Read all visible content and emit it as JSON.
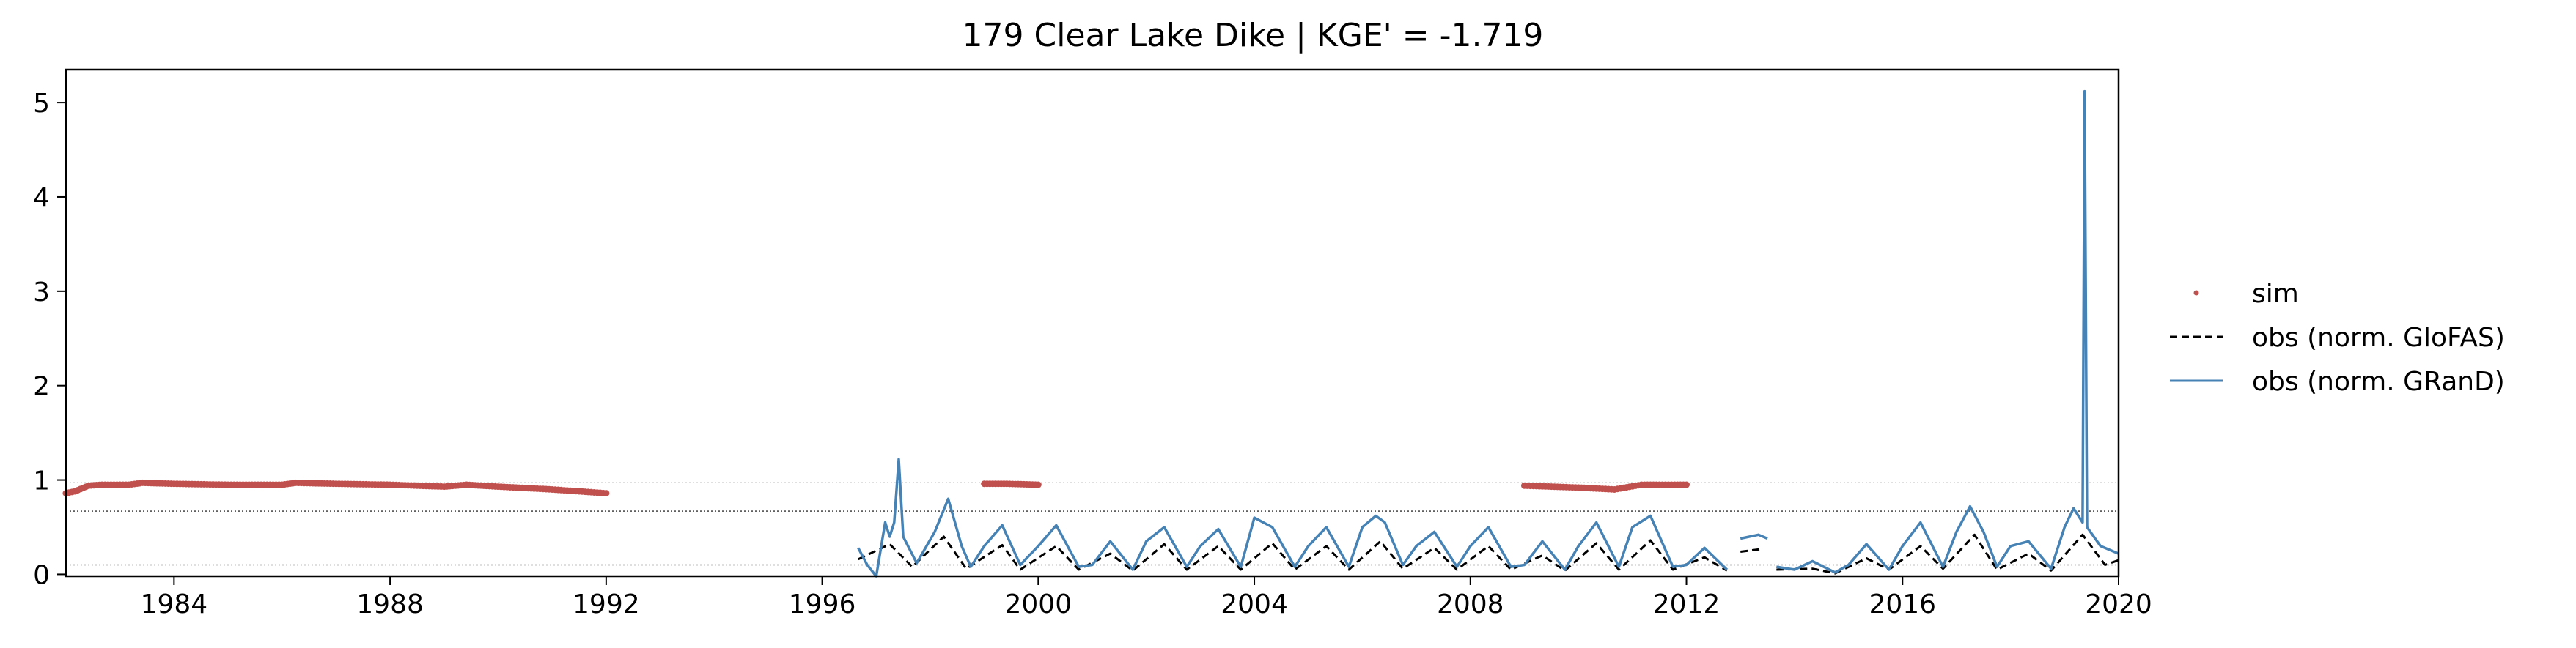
{
  "chart_data": {
    "type": "line",
    "title": "179  Clear Lake Dike | KGE' = -1.719",
    "x_axis": {
      "type": "date",
      "range": [
        "1982-01-01",
        "2020-01-01"
      ],
      "ticks": [
        "1984",
        "1988",
        "1992",
        "1996",
        "2000",
        "2004",
        "2008",
        "2012",
        "2016",
        "2020"
      ]
    },
    "y_axis": {
      "range": [
        -0.02,
        5.35
      ],
      "ticks": [
        "0",
        "1",
        "2",
        "3",
        "4",
        "5"
      ]
    },
    "grid": false,
    "legend_position": "right, outside plot",
    "reference_lines": [
      0.97,
      0.67,
      0.1
    ],
    "series": [
      {
        "name": "sim",
        "style": "points",
        "color": "#c0504d",
        "segments": [
          [
            [
              "1982-01-01",
              0.86
            ],
            [
              "1982-03-01",
              0.88
            ],
            [
              "1982-06-01",
              0.94
            ],
            [
              "1982-09-01",
              0.95
            ],
            [
              "1983-03-01",
              0.95
            ],
            [
              "1983-06-01",
              0.97
            ],
            [
              "1984-01-01",
              0.96
            ],
            [
              "1985-01-01",
              0.95
            ],
            [
              "1986-01-01",
              0.95
            ],
            [
              "1986-04-01",
              0.97
            ],
            [
              "1987-01-01",
              0.96
            ],
            [
              "1988-01-01",
              0.95
            ],
            [
              "1989-01-01",
              0.93
            ],
            [
              "1989-06-01",
              0.95
            ],
            [
              "1990-01-01",
              0.93
            ],
            [
              "1991-01-01",
              0.9
            ],
            [
              "1992-01-01",
              0.86
            ]
          ],
          [
            [
              "1999-01-01",
              0.96
            ],
            [
              "1999-06-01",
              0.96
            ],
            [
              "2000-01-01",
              0.95
            ]
          ],
          [
            [
              "2009-01-01",
              0.94
            ],
            [
              "2010-01-01",
              0.92
            ],
            [
              "2010-09-01",
              0.9
            ],
            [
              "2011-03-01",
              0.95
            ],
            [
              "2012-01-01",
              0.95
            ]
          ]
        ]
      },
      {
        "name": "obs (norm. GloFAS)",
        "style": "dashed",
        "color": "#000000",
        "segments": [
          [
            [
              "1996-09-01",
              0.16
            ],
            [
              "1997-04-01",
              0.32
            ],
            [
              "1997-09-01",
              0.08
            ],
            [
              "1998-04-01",
              0.4
            ],
            [
              "1998-09-01",
              0.06
            ],
            [
              "1999-05-01",
              0.31
            ],
            [
              "1999-09-01",
              0.05
            ],
            [
              "2000-05-01",
              0.3
            ],
            [
              "2000-10-01",
              0.05
            ],
            [
              "2001-05-01",
              0.22
            ],
            [
              "2001-10-01",
              0.04
            ],
            [
              "2002-05-01",
              0.32
            ],
            [
              "2002-10-01",
              0.05
            ],
            [
              "2003-05-01",
              0.3
            ],
            [
              "2003-10-01",
              0.05
            ],
            [
              "2004-05-01",
              0.33
            ],
            [
              "2004-10-01",
              0.05
            ],
            [
              "2005-05-01",
              0.3
            ],
            [
              "2005-10-01",
              0.05
            ],
            [
              "2006-05-01",
              0.35
            ],
            [
              "2006-10-01",
              0.06
            ],
            [
              "2007-05-01",
              0.28
            ],
            [
              "2007-10-01",
              0.05
            ],
            [
              "2008-05-01",
              0.3
            ],
            [
              "2008-10-01",
              0.05
            ],
            [
              "2009-05-01",
              0.2
            ],
            [
              "2009-10-01",
              0.04
            ],
            [
              "2010-05-01",
              0.33
            ],
            [
              "2010-10-01",
              0.05
            ],
            [
              "2011-05-01",
              0.36
            ],
            [
              "2011-10-01",
              0.05
            ],
            [
              "2012-05-01",
              0.18
            ],
            [
              "2012-10-01",
              0.04
            ]
          ],
          [
            [
              "2013-01-01",
              0.24
            ],
            [
              "2013-06-01",
              0.27
            ]
          ],
          [
            [
              "2013-09-01",
              0.05
            ],
            [
              "2014-05-01",
              0.06
            ],
            [
              "2014-10-01",
              0.01
            ],
            [
              "2015-05-01",
              0.17
            ],
            [
              "2015-10-01",
              0.05
            ],
            [
              "2016-05-01",
              0.3
            ],
            [
              "2016-10-01",
              0.06
            ],
            [
              "2017-05-01",
              0.42
            ],
            [
              "2017-10-01",
              0.05
            ],
            [
              "2018-05-01",
              0.22
            ],
            [
              "2018-10-01",
              0.04
            ],
            [
              "2019-05-01",
              0.42
            ],
            [
              "2019-10-01",
              0.1
            ],
            [
              "2020-01-01",
              0.15
            ]
          ]
        ]
      },
      {
        "name": "obs (norm. GRanD)",
        "style": "solid",
        "color": "#4682b4",
        "segments": [
          [
            [
              "1996-09-01",
              0.28
            ],
            [
              "1996-11-01",
              0.1
            ],
            [
              "1997-01-01",
              -0.02
            ],
            [
              "1997-03-01",
              0.55
            ],
            [
              "1997-04-01",
              0.4
            ],
            [
              "1997-05-01",
              0.55
            ],
            [
              "1997-06-01",
              1.22
            ],
            [
              "1997-07-01",
              0.4
            ],
            [
              "1997-10-01",
              0.12
            ],
            [
              "1998-02-01",
              0.45
            ],
            [
              "1998-05-01",
              0.8
            ],
            [
              "1998-08-01",
              0.3
            ],
            [
              "1998-10-01",
              0.08
            ],
            [
              "1999-01-01",
              0.3
            ],
            [
              "1999-05-01",
              0.52
            ],
            [
              "1999-09-01",
              0.1
            ],
            [
              "2000-01-01",
              0.3
            ],
            [
              "2000-05-01",
              0.52
            ],
            [
              "2000-10-01",
              0.08
            ],
            [
              "2001-01-01",
              0.1
            ],
            [
              "2001-05-01",
              0.35
            ],
            [
              "2001-10-01",
              0.05
            ],
            [
              "2002-01-01",
              0.35
            ],
            [
              "2002-05-01",
              0.5
            ],
            [
              "2002-10-01",
              0.08
            ],
            [
              "2003-01-01",
              0.3
            ],
            [
              "2003-05-01",
              0.48
            ],
            [
              "2003-10-01",
              0.08
            ],
            [
              "2004-01-01",
              0.6
            ],
            [
              "2004-05-01",
              0.5
            ],
            [
              "2004-10-01",
              0.08
            ],
            [
              "2005-01-01",
              0.3
            ],
            [
              "2005-05-01",
              0.5
            ],
            [
              "2005-10-01",
              0.08
            ],
            [
              "2006-01-01",
              0.5
            ],
            [
              "2006-04-01",
              0.62
            ],
            [
              "2006-06-01",
              0.55
            ],
            [
              "2006-10-01",
              0.1
            ],
            [
              "2007-01-01",
              0.3
            ],
            [
              "2007-05-01",
              0.45
            ],
            [
              "2007-10-01",
              0.08
            ],
            [
              "2008-01-01",
              0.3
            ],
            [
              "2008-05-01",
              0.5
            ],
            [
              "2008-10-01",
              0.08
            ],
            [
              "2009-01-01",
              0.1
            ],
            [
              "2009-05-01",
              0.35
            ],
            [
              "2009-10-01",
              0.05
            ],
            [
              "2010-01-01",
              0.3
            ],
            [
              "2010-05-01",
              0.55
            ],
            [
              "2010-10-01",
              0.08
            ],
            [
              "2011-01-01",
              0.5
            ],
            [
              "2011-05-01",
              0.62
            ],
            [
              "2011-10-01",
              0.08
            ],
            [
              "2012-01-01",
              0.1
            ],
            [
              "2012-05-01",
              0.28
            ],
            [
              "2012-10-01",
              0.05
            ]
          ],
          [
            [
              "2013-01-01",
              0.38
            ],
            [
              "2013-05-01",
              0.42
            ],
            [
              "2013-07-01",
              0.38
            ]
          ],
          [
            [
              "2013-09-01",
              0.08
            ],
            [
              "2014-01-01",
              0.05
            ],
            [
              "2014-05-01",
              0.14
            ],
            [
              "2014-10-01",
              0.02
            ],
            [
              "2015-01-01",
              0.1
            ],
            [
              "2015-05-01",
              0.32
            ],
            [
              "2015-10-01",
              0.05
            ],
            [
              "2016-01-01",
              0.3
            ],
            [
              "2016-05-01",
              0.55
            ],
            [
              "2016-10-01",
              0.08
            ],
            [
              "2017-01-01",
              0.45
            ],
            [
              "2017-04-01",
              0.72
            ],
            [
              "2017-07-01",
              0.45
            ],
            [
              "2017-10-01",
              0.08
            ],
            [
              "2018-01-01",
              0.3
            ],
            [
              "2018-05-01",
              0.35
            ],
            [
              "2018-10-01",
              0.06
            ],
            [
              "2019-01-01",
              0.5
            ],
            [
              "2019-03-01",
              0.7
            ],
            [
              "2019-05-01",
              0.55
            ],
            [
              "2019-05-15",
              5.12
            ],
            [
              "2019-06-01",
              0.5
            ],
            [
              "2019-09-01",
              0.3
            ],
            [
              "2020-01-01",
              0.22
            ]
          ]
        ]
      }
    ]
  }
}
